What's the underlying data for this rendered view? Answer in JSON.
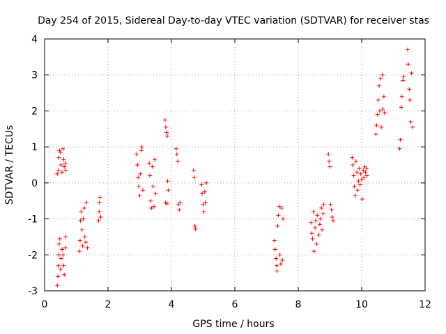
{
  "chart_data": {
    "type": "scatter",
    "title": "Day 254 of 2015, Sidereal Day-to-day VTEC variation (SDTVAR) for receiver stas",
    "xlabel": "GPS time / hours",
    "ylabel": "SDTVAR / TECUs",
    "xlim": [
      0,
      12
    ],
    "ylim": [
      -3,
      4
    ],
    "xticks": [
      0,
      2,
      4,
      6,
      8,
      10,
      12
    ],
    "xtick_labels": [
      "0",
      "2",
      "4",
      "6",
      "8",
      "10",
      "12"
    ],
    "yticks": [
      -3,
      -2,
      -1,
      0,
      1,
      2,
      3,
      4
    ],
    "ytick_labels": [
      "-3",
      "-2",
      "-1",
      "0",
      "1",
      "2",
      "3",
      "4"
    ],
    "grid": true,
    "marker": "+",
    "color": "#ff0000",
    "series": [
      {
        "name": "SDTVAR",
        "points": [
          [
            0.4,
            -2.85
          ],
          [
            0.42,
            -2.6
          ],
          [
            0.43,
            -2.3
          ],
          [
            0.45,
            -2.0
          ],
          [
            0.46,
            -1.7
          ],
          [
            0.48,
            -1.55
          ],
          [
            0.5,
            -2.4
          ],
          [
            0.52,
            -2.1
          ],
          [
            0.55,
            -1.85
          ],
          [
            0.58,
            -2.0
          ],
          [
            0.6,
            -2.3
          ],
          [
            0.62,
            -2.55
          ],
          [
            0.65,
            -1.8
          ],
          [
            0.66,
            -1.5
          ],
          [
            0.4,
            0.25
          ],
          [
            0.43,
            0.35
          ],
          [
            0.45,
            0.7
          ],
          [
            0.47,
            0.9
          ],
          [
            0.5,
            0.85
          ],
          [
            0.52,
            0.5
          ],
          [
            0.55,
            0.3
          ],
          [
            0.58,
            0.95
          ],
          [
            0.6,
            0.65
          ],
          [
            0.62,
            0.45
          ],
          [
            0.65,
            0.55
          ],
          [
            0.67,
            0.35
          ],
          [
            1.1,
            -1.9
          ],
          [
            1.12,
            -1.6
          ],
          [
            1.13,
            -1.05
          ],
          [
            1.15,
            -0.8
          ],
          [
            1.18,
            -1.3
          ],
          [
            1.2,
            -1.75
          ],
          [
            1.22,
            -1.0
          ],
          [
            1.25,
            -0.7
          ],
          [
            1.27,
            -1.5
          ],
          [
            1.3,
            -1.65
          ],
          [
            1.32,
            -0.55
          ],
          [
            1.35,
            -1.8
          ],
          [
            1.7,
            -1.05
          ],
          [
            1.72,
            -0.8
          ],
          [
            1.73,
            -0.55
          ],
          [
            1.75,
            -0.4
          ],
          [
            1.77,
            -0.95
          ],
          [
            2.9,
            0.8
          ],
          [
            2.93,
            0.5
          ],
          [
            2.95,
            0.15
          ],
          [
            2.97,
            -0.1
          ],
          [
            3.0,
            -0.35
          ],
          [
            3.02,
            0.25
          ],
          [
            3.05,
            0.9
          ],
          [
            3.07,
            1.0
          ],
          [
            3.1,
            -0.2
          ],
          [
            3.3,
            0.55
          ],
          [
            3.32,
            0.2
          ],
          [
            3.35,
            -0.5
          ],
          [
            3.37,
            -0.7
          ],
          [
            3.4,
            0.45
          ],
          [
            3.42,
            -0.1
          ],
          [
            3.45,
            -0.65
          ],
          [
            3.47,
            0.65
          ],
          [
            3.5,
            -0.3
          ],
          [
            3.8,
            1.75
          ],
          [
            3.82,
            1.55
          ],
          [
            3.85,
            1.4
          ],
          [
            3.87,
            1.3
          ],
          [
            3.88,
            0.05
          ],
          [
            3.9,
            -0.2
          ],
          [
            3.82,
            -0.55
          ],
          [
            3.86,
            -0.58
          ],
          [
            4.15,
            0.95
          ],
          [
            4.17,
            0.8
          ],
          [
            4.2,
            0.6
          ],
          [
            4.22,
            -0.6
          ],
          [
            4.25,
            -0.75
          ],
          [
            4.27,
            -0.55
          ],
          [
            4.7,
            0.35
          ],
          [
            4.72,
            0.15
          ],
          [
            4.74,
            -1.2
          ],
          [
            4.76,
            -1.28
          ],
          [
            4.95,
            -0.05
          ],
          [
            4.97,
            -0.3
          ],
          [
            5.0,
            -0.6
          ],
          [
            5.02,
            -0.8
          ],
          [
            5.05,
            -0.25
          ],
          [
            5.07,
            -0.55
          ],
          [
            5.1,
            0.0
          ],
          [
            7.25,
            -1.6
          ],
          [
            7.27,
            -1.85
          ],
          [
            7.3,
            -2.1
          ],
          [
            7.32,
            -2.3
          ],
          [
            7.33,
            -2.45
          ],
          [
            7.35,
            -1.2
          ],
          [
            7.37,
            -0.9
          ],
          [
            7.4,
            -0.65
          ],
          [
            7.42,
            -2.0
          ],
          [
            7.45,
            -2.25
          ],
          [
            7.47,
            -0.7
          ],
          [
            7.5,
            -2.15
          ],
          [
            7.52,
            -1.0
          ],
          [
            8.4,
            -1.1
          ],
          [
            8.43,
            -1.4
          ],
          [
            8.45,
            -1.55
          ],
          [
            8.48,
            -0.8
          ],
          [
            8.5,
            -1.9
          ],
          [
            8.53,
            -1.25
          ],
          [
            8.55,
            -1.05
          ],
          [
            8.58,
            -1.7
          ],
          [
            8.6,
            -0.9
          ],
          [
            8.65,
            -1.45
          ],
          [
            8.68,
            -1.15
          ],
          [
            8.7,
            -1.0
          ],
          [
            8.73,
            -0.7
          ],
          [
            8.75,
            -1.3
          ],
          [
            8.78,
            -0.85
          ],
          [
            8.8,
            -0.6
          ],
          [
            8.95,
            0.8
          ],
          [
            8.97,
            0.6
          ],
          [
            9.0,
            0.45
          ],
          [
            9.02,
            -0.6
          ],
          [
            9.05,
            -0.75
          ],
          [
            9.07,
            -0.95
          ],
          [
            9.1,
            -1.05
          ],
          [
            9.7,
            0.7
          ],
          [
            9.72,
            0.5
          ],
          [
            9.75,
            0.2
          ],
          [
            9.77,
            -0.1
          ],
          [
            9.8,
            -0.35
          ],
          [
            9.82,
            0.6
          ],
          [
            9.85,
            0.3
          ],
          [
            9.87,
            -0.2
          ],
          [
            9.9,
            0.05
          ],
          [
            9.92,
            0.4
          ],
          [
            9.95,
            -0.05
          ],
          [
            9.97,
            0.25
          ],
          [
            10.0,
            0.1
          ],
          [
            10.02,
            -0.45
          ],
          [
            10.05,
            0.35
          ],
          [
            10.07,
            0.15
          ],
          [
            10.1,
            0.45
          ],
          [
            10.12,
            0.3
          ],
          [
            10.15,
            0.4
          ],
          [
            10.17,
            0.2
          ],
          [
            10.45,
            1.35
          ],
          [
            10.47,
            1.6
          ],
          [
            10.5,
            1.9
          ],
          [
            10.52,
            2.3
          ],
          [
            10.55,
            2.7
          ],
          [
            10.57,
            2.0
          ],
          [
            10.6,
            2.9
          ],
          [
            10.62,
            1.55
          ],
          [
            10.65,
            3.0
          ],
          [
            10.67,
            2.05
          ],
          [
            10.7,
            2.4
          ],
          [
            10.72,
            1.95
          ],
          [
            11.2,
            0.95
          ],
          [
            11.22,
            1.2
          ],
          [
            11.25,
            2.1
          ],
          [
            11.27,
            2.4
          ],
          [
            11.3,
            2.85
          ],
          [
            11.32,
            2.95
          ],
          [
            11.45,
            3.7
          ],
          [
            11.47,
            3.3
          ],
          [
            11.5,
            2.6
          ],
          [
            11.52,
            2.3
          ],
          [
            11.55,
            1.7
          ],
          [
            11.57,
            3.05
          ],
          [
            11.6,
            1.55
          ]
        ]
      }
    ]
  }
}
